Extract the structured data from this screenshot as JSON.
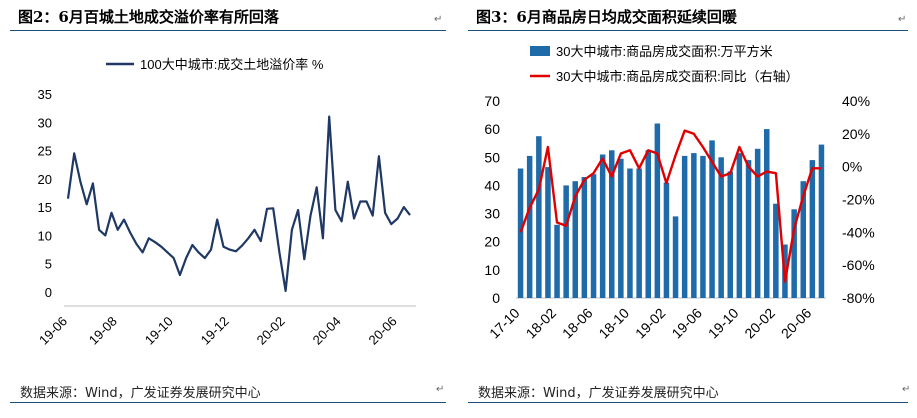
{
  "left": {
    "title": "图2：6月百城土地成交溢价率有所回落",
    "source": "数据来源：Wind，广发证券发展研究中心",
    "chart_data": {
      "type": "line",
      "legend": "100大中城市:成交土地溢价率 %",
      "color": "#1f3864",
      "ylim": [
        0,
        35
      ],
      "yticks": [
        0,
        5,
        10,
        15,
        20,
        25,
        30,
        35
      ],
      "xtick_labels": [
        "19-06",
        "19-08",
        "19-10",
        "19-12",
        "20-02",
        "20-04",
        "20-06"
      ],
      "xtick_positions": [
        0,
        8,
        17,
        26,
        35,
        44,
        53
      ],
      "values": [
        16.5,
        24.5,
        19.5,
        15.5,
        19.2,
        11,
        10,
        14,
        11,
        12.8,
        10.5,
        8.5,
        7,
        9.5,
        8.8,
        8,
        7,
        6,
        3,
        6,
        8.3,
        7,
        6,
        7.5,
        12.8,
        8,
        7.5,
        7.2,
        8.2,
        9.5,
        11,
        9,
        14.7,
        14.8,
        7,
        0.2,
        11,
        14.5,
        5.8,
        13.5,
        18.5,
        9.5,
        31,
        14.5,
        12.5,
        19.5,
        13,
        16,
        16,
        13.5,
        24,
        14,
        12,
        13,
        15,
        13.6
      ]
    }
  },
  "right": {
    "title": "图3：6月商品房日均成交面积延续回暖",
    "source": "数据来源：Wind，广发证券发展研究中心",
    "chart_data": {
      "type": "bar+line",
      "bar_legend": "30大中城市:商品房成交面积:万平方米",
      "line_legend": "30大中城市:商品房成交面积:同比（右轴）",
      "bar_color": "#1f6aa8",
      "line_color": "#e00000",
      "ylim_left": [
        0,
        70
      ],
      "yticks_left": [
        0,
        10,
        20,
        30,
        40,
        50,
        60,
        70
      ],
      "ylim_right": [
        -80,
        40
      ],
      "yticks_right": [
        -80,
        -60,
        -40,
        -20,
        0,
        20,
        40
      ],
      "yticks_right_labels": [
        "-80%",
        "-60%",
        "-40%",
        "-20%",
        "0%",
        "20%",
        "40%"
      ],
      "xtick_labels": [
        "17-10",
        "18-02",
        "18-06",
        "18-10",
        "19-02",
        "19-06",
        "19-10",
        "20-02",
        "20-06"
      ],
      "xtick_positions": [
        0,
        4,
        8,
        12,
        16,
        20,
        24,
        28,
        32
      ],
      "bar_values": [
        46,
        50.5,
        57.5,
        46.5,
        26,
        40,
        41.5,
        43,
        44,
        51,
        52.5,
        49.5,
        46,
        46,
        52.5,
        62,
        41,
        29,
        50.5,
        51.5,
        50.5,
        56,
        50,
        45,
        51.5,
        49,
        53,
        60,
        33.5,
        19,
        31.5,
        41.5,
        49,
        54.5
      ],
      "yoy_values": [
        -40,
        -25,
        -14,
        12,
        -34,
        -36,
        -18,
        -8,
        -4,
        5,
        -6,
        8,
        10,
        -1,
        10,
        8,
        -10,
        7,
        22,
        20,
        12,
        3,
        -6,
        -4,
        12,
        0,
        -6,
        -3,
        -4,
        -70,
        -38,
        -18,
        -1,
        -1
      ]
    }
  }
}
